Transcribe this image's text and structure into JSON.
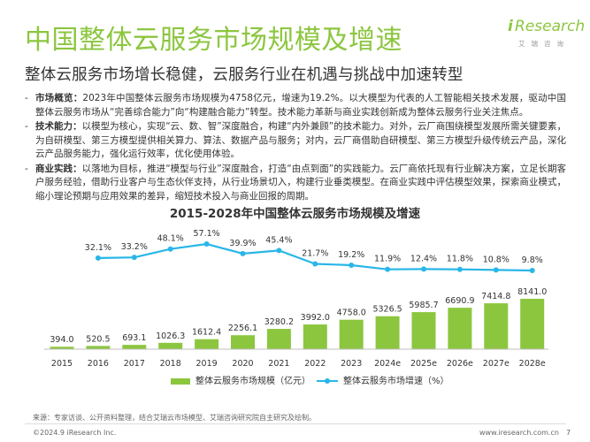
{
  "header": {
    "title": "中国整体云服务市场规模及增速",
    "subtitle": "整体云服务市场增长稳健，云服务行业在机遇与挑战中加速转型",
    "logo_i": "i",
    "logo_text": "Research",
    "logo_sub": "艾瑞咨询"
  },
  "bullets": [
    {
      "label": "市场概览：",
      "text": "2023年中国整体云服务市场规模为4758亿元，增速为19.2%。以大模型为代表的人工智能相关技术发展，驱动中国整体云服务市场从“完善综合能力”向“构建融合能力”转型。技术能力革新与商业实践创新成为整体云服务行业关注焦点。"
    },
    {
      "label": "技术能力：",
      "text": "以模型为核心，实现“云、数、智”深度融合，构建“内外兼顾”的技术能力。对外，云厂商围绕模型发展所需关键要素，为自研模型、第三方模型提供相关算力、算法、数据产品与服务；对内，云厂商借助自研模型、第三方模型升级传统云产品，深化云产品服务能力，强化运行效率，优化使用体验。"
    },
    {
      "label": "商业实践：",
      "text": "以落地为目标，推进“模型与行业”深度融合，打造“由点到面”的实践能力。云厂商依托现有行业解决方案，立足长期客户服务经验，借助行业客户与生态伙伴支持，从行业场景切入，构建行业垂类模型。在商业实践中评估模型效果，探索商业模式，缩小理论预期与应用效果的差异，缩短技术投入与商业回报的周期。"
    }
  ],
  "chart_data": {
    "type": "bar",
    "title": "2015-2028年中国整体云服务市场规模及增速",
    "categories": [
      "2015",
      "2016",
      "2017",
      "2018",
      "2019",
      "2020",
      "2021",
      "2022",
      "2023",
      "2024e",
      "2025e",
      "2026e",
      "2027e",
      "2028e"
    ],
    "series": [
      {
        "name": "整体云服务市场规模（亿元）",
        "type": "bar",
        "color": "#8cc63f",
        "values": [
          394.0,
          520.5,
          693.1,
          1026.3,
          1612.4,
          2256.1,
          3280.2,
          3992.0,
          4758.0,
          5326.5,
          5985.7,
          6690.9,
          7414.8,
          8141.0
        ],
        "labels": [
          "394.0",
          "520.5",
          "693.1",
          "1026.3",
          "1612.4",
          "2256.1",
          "3280.2",
          "3992.0",
          "4758.0",
          "5326.5",
          "5985.7",
          "6690.9",
          "7414.8",
          "8141.0"
        ]
      },
      {
        "name": "整体云服务市场增速（%）",
        "type": "line",
        "color": "#29b6e8",
        "values": [
          null,
          32.1,
          33.2,
          48.1,
          57.1,
          39.9,
          45.4,
          21.7,
          19.2,
          11.9,
          12.4,
          11.8,
          10.8,
          9.8
        ],
        "labels": [
          "",
          "32.1%",
          "33.2%",
          "48.1%",
          "57.1%",
          "39.9%",
          "45.4%",
          "21.7%",
          "19.2%",
          "11.9%",
          "12.4%",
          "11.8%",
          "10.8%",
          "9.8%"
        ]
      }
    ],
    "legend_position": "bottom",
    "grid": false
  },
  "footer": {
    "source": "来源：专家访谈、公开资料整理，结合艾瑞云市场模型、艾瑞咨询研究院自主研究及绘制。",
    "copyright": "©2024.9 iResearch Inc.",
    "website": "www.iresearch.com.cn",
    "page": "7"
  }
}
